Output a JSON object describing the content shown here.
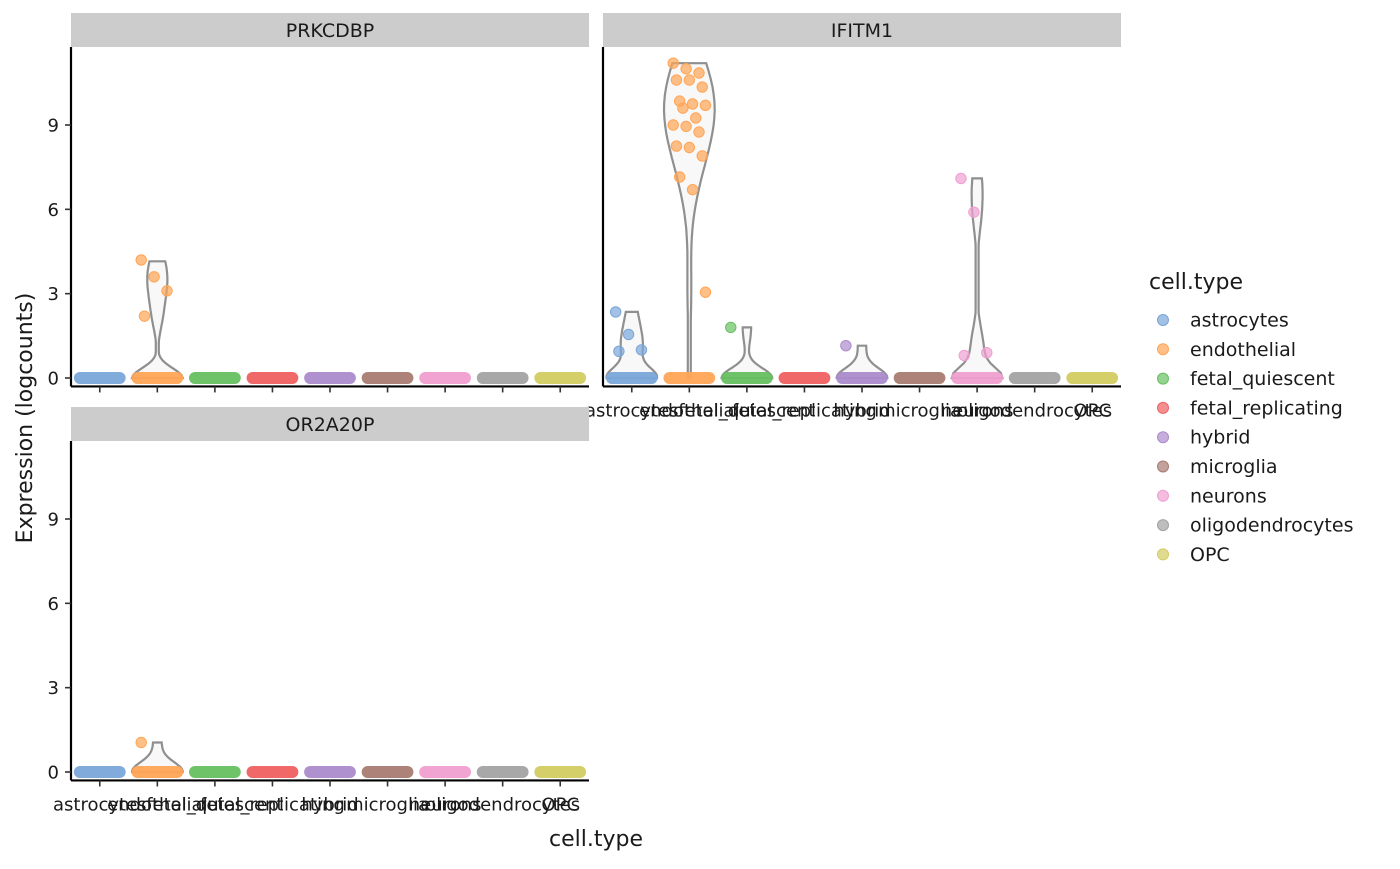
{
  "chart_data": {
    "type": "violin",
    "xlabel": "cell.type",
    "ylabel": "Expression (logcounts)",
    "ylim": [
      -0.3,
      11.8
    ],
    "yticks": [
      0,
      3,
      6,
      9
    ],
    "categories": [
      "astrocytes",
      "endothelial",
      "fetal_quiescent",
      "fetal_replicating",
      "hybrid",
      "microglia",
      "neurons",
      "oligodendrocytes",
      "OPC"
    ],
    "colors": {
      "astrocytes": "#7aa6d8",
      "endothelial": "#ffa556",
      "fetal_quiescent": "#66c061",
      "fetal_replicating": "#ef6060",
      "hybrid": "#ac8bcc",
      "microglia": "#a97b72",
      "neurons": "#f09fd0",
      "oligodendrocytes": "#a3a3a3",
      "OPC": "#d3cc62"
    },
    "legend": {
      "title": "cell.type",
      "position": "right"
    },
    "panels": [
      {
        "gene": "PRKCDBP",
        "show_x_labels": false,
        "groups": [
          {
            "cell_type": "astrocytes",
            "max": 0,
            "points": []
          },
          {
            "cell_type": "endothelial",
            "max": 4.15,
            "points": [
              4.2,
              3.6,
              3.1,
              2.2
            ]
          },
          {
            "cell_type": "fetal_quiescent",
            "max": 0,
            "points": []
          },
          {
            "cell_type": "fetal_replicating",
            "max": 0,
            "points": []
          },
          {
            "cell_type": "hybrid",
            "max": 0,
            "points": []
          },
          {
            "cell_type": "microglia",
            "max": 0,
            "points": []
          },
          {
            "cell_type": "neurons",
            "max": 0,
            "points": []
          },
          {
            "cell_type": "oligodendrocytes",
            "max": 0,
            "points": []
          },
          {
            "cell_type": "OPC",
            "max": 0,
            "points": []
          }
        ]
      },
      {
        "gene": "IFITM1",
        "show_x_labels": true,
        "groups": [
          {
            "cell_type": "astrocytes",
            "max": 2.35,
            "points": [
              2.35,
              1.55,
              1.0,
              0.95
            ]
          },
          {
            "cell_type": "endothelial",
            "max": 11.2,
            "points": [
              11.2,
              11.0,
              10.85,
              10.6,
              10.6,
              10.35,
              9.85,
              9.75,
              9.7,
              9.6,
              9.25,
              9.0,
              8.95,
              8.75,
              8.25,
              8.2,
              7.9,
              7.15,
              6.7,
              3.05
            ]
          },
          {
            "cell_type": "fetal_quiescent",
            "max": 1.8,
            "points": [
              1.8
            ]
          },
          {
            "cell_type": "fetal_replicating",
            "max": 0,
            "points": []
          },
          {
            "cell_type": "hybrid",
            "max": 1.15,
            "points": [
              1.15
            ]
          },
          {
            "cell_type": "microglia",
            "max": 0,
            "points": []
          },
          {
            "cell_type": "neurons",
            "max": 7.1,
            "points": [
              7.1,
              5.9,
              0.9,
              0.8
            ]
          },
          {
            "cell_type": "oligodendrocytes",
            "max": 0,
            "points": []
          },
          {
            "cell_type": "OPC",
            "max": 0,
            "points": []
          }
        ]
      },
      {
        "gene": "OR2A20P",
        "show_x_labels": true,
        "groups": [
          {
            "cell_type": "astrocytes",
            "max": 0,
            "points": []
          },
          {
            "cell_type": "endothelial",
            "max": 1.05,
            "points": [
              1.05
            ]
          },
          {
            "cell_type": "fetal_quiescent",
            "max": 0,
            "points": []
          },
          {
            "cell_type": "fetal_replicating",
            "max": 0,
            "points": []
          },
          {
            "cell_type": "hybrid",
            "max": 0,
            "points": []
          },
          {
            "cell_type": "microglia",
            "max": 0,
            "points": []
          },
          {
            "cell_type": "neurons",
            "max": 0,
            "points": []
          },
          {
            "cell_type": "oligodendrocytes",
            "max": 0,
            "points": []
          },
          {
            "cell_type": "OPC",
            "max": 0,
            "points": []
          }
        ]
      }
    ]
  }
}
